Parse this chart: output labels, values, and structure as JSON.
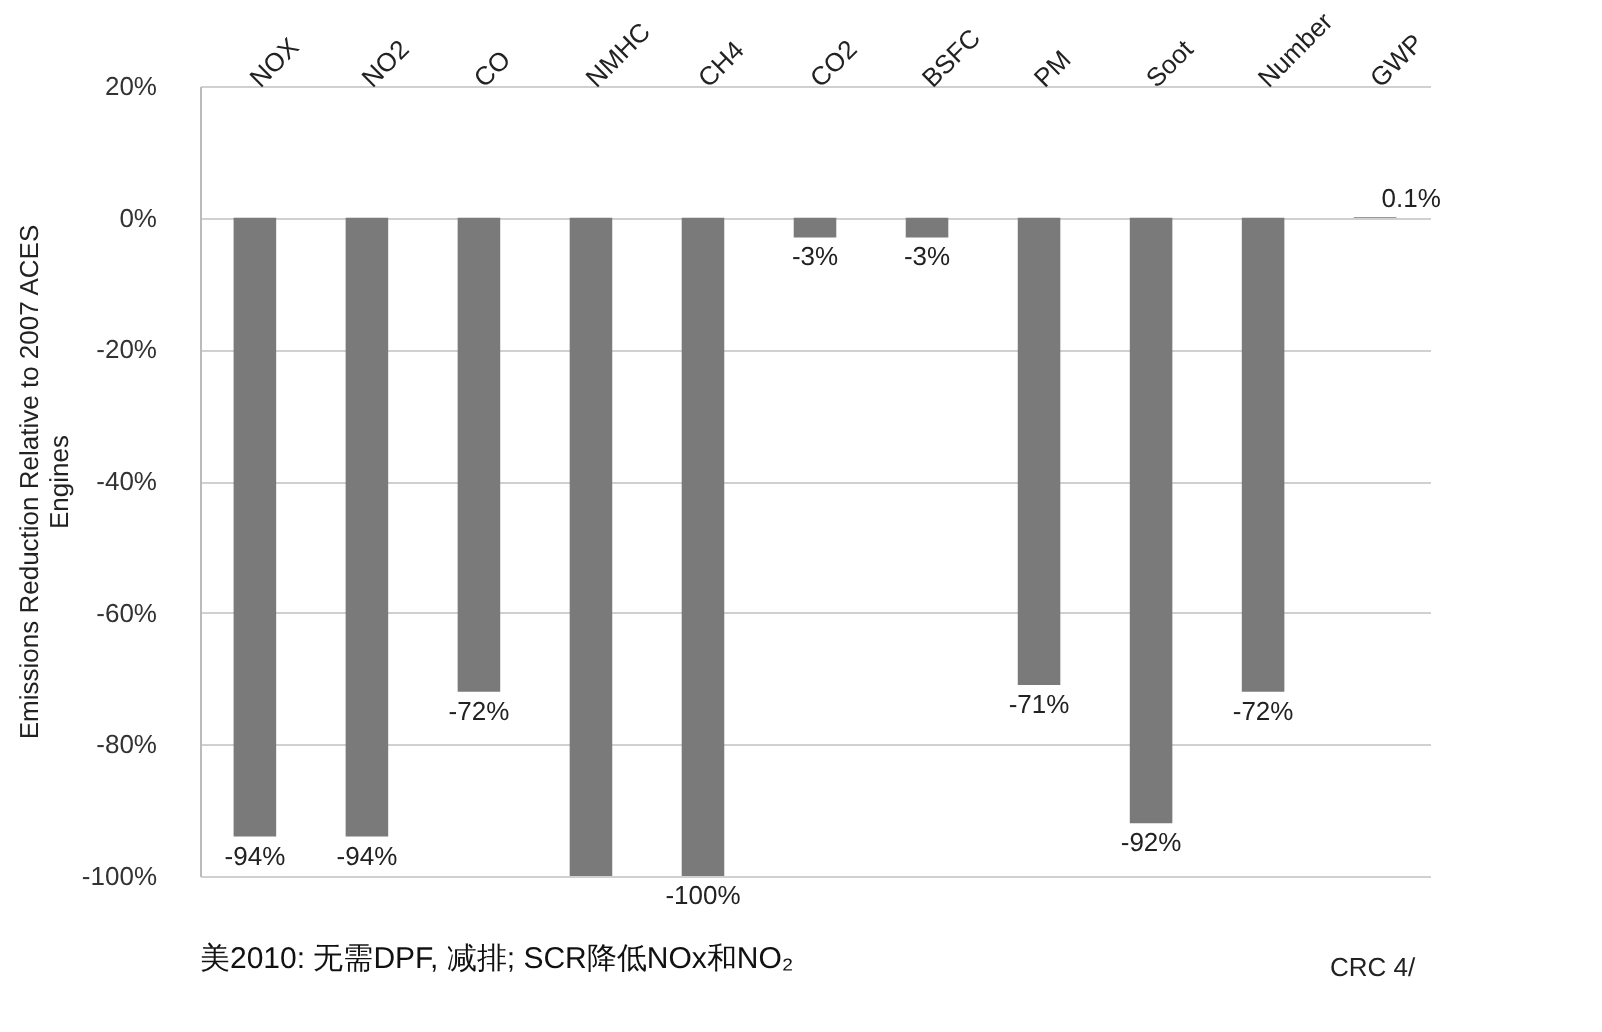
{
  "chart_data": {
    "type": "bar",
    "categories": [
      "NOX",
      "NO2",
      "CO",
      "NMHC",
      "CH4",
      "CO2",
      "BSFC",
      "PM",
      "Soot",
      "Number",
      "GWP"
    ],
    "values": [
      -94,
      -94,
      -72,
      -100,
      -100,
      -3,
      -3,
      -71,
      -92,
      -72,
      0.1
    ],
    "value_labels": [
      "-94%",
      "-94%",
      "-72%",
      null,
      "-100%",
      "-3%",
      "-3%",
      "-71%",
      "-92%",
      "-72%",
      "0.1%"
    ],
    "color": "#7a7a7a",
    "ylabel": "Emissions Reduction Relative to 2007 ACES Engines",
    "ylim": [
      -100,
      20
    ],
    "yticks": [
      {
        "value": -100,
        "label": "-100%"
      },
      {
        "value": -80,
        "label": "-80%"
      },
      {
        "value": -60,
        "label": "-60%"
      },
      {
        "value": -40,
        "label": "-40%"
      },
      {
        "value": -20,
        "label": "-20%"
      },
      {
        "value": 0,
        "label": "0%"
      },
      {
        "value": 20,
        "label": "20%"
      }
    ],
    "grid": "y",
    "annotations": [
      "美2010: 无需DPF, 减排; SCR降低NOx和NO₂",
      "CRC 4/"
    ]
  }
}
